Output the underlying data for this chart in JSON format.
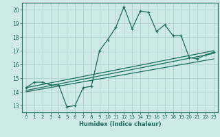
{
  "title": "",
  "xlabel": "Humidex (Indice chaleur)",
  "ylabel": "",
  "background_color": "#ceeae6",
  "grid_color": "#b0d4d0",
  "line_color": "#1a6b5e",
  "xlim": [
    -0.5,
    23.5
  ],
  "ylim": [
    12.5,
    20.5
  ],
  "yticks": [
    13,
    14,
    15,
    16,
    17,
    18,
    19,
    20
  ],
  "xticks": [
    0,
    1,
    2,
    3,
    4,
    5,
    6,
    7,
    8,
    9,
    10,
    11,
    12,
    13,
    14,
    15,
    16,
    17,
    18,
    19,
    20,
    21,
    22,
    23
  ],
  "series1_x": [
    0,
    1,
    2,
    3,
    4,
    5,
    6,
    7,
    8,
    9,
    10,
    11,
    12,
    13,
    14,
    15,
    16,
    17,
    18,
    19,
    20,
    21,
    22,
    23
  ],
  "series1_y": [
    14.3,
    14.7,
    14.7,
    14.5,
    14.5,
    12.9,
    13.0,
    14.3,
    14.4,
    17.0,
    17.8,
    18.7,
    20.2,
    18.6,
    19.9,
    19.8,
    18.4,
    18.9,
    18.1,
    18.1,
    16.5,
    16.4,
    16.7,
    16.9
  ],
  "series2_x": [
    0,
    23
  ],
  "series2_y": [
    14.3,
    17.0
  ],
  "series3_x": [
    0,
    23
  ],
  "series3_y": [
    14.1,
    16.8
  ],
  "series4_x": [
    0,
    23
  ],
  "series4_y": [
    14.0,
    16.4
  ]
}
